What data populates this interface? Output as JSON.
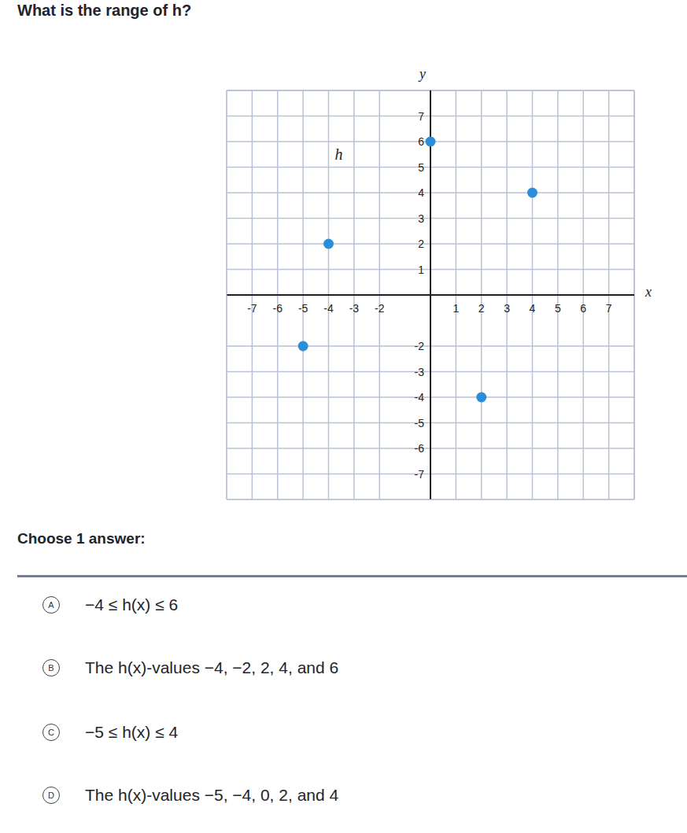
{
  "question": "What is the range of h?",
  "chart_data": {
    "type": "scatter",
    "x": [
      -5,
      -4,
      0,
      2,
      4
    ],
    "values": [
      -2,
      2,
      6,
      -4,
      4
    ],
    "color": "#2a8fd8",
    "xlim": [
      -8,
      8
    ],
    "ylim": [
      -8,
      8
    ],
    "xticks": [
      -7,
      -6,
      -5,
      -4,
      -3,
      -2,
      1,
      2,
      3,
      4,
      5,
      6,
      7
    ],
    "yticks": [
      -7,
      -6,
      -5,
      -4,
      -3,
      -2,
      1,
      2,
      3,
      4,
      5,
      6,
      7
    ],
    "grid": true,
    "x_label": "x",
    "y_label": "y",
    "annotations": [
      {
        "text": "h",
        "x": -3.6,
        "y": 5.5
      }
    ]
  },
  "prompt": "Choose 1 answer:",
  "choices": [
    {
      "letter": "A",
      "text": "−4 ≤ h(x) ≤ 6"
    },
    {
      "letter": "B",
      "text": "The h(x)-values −4, −2, 2, 4, and 6"
    },
    {
      "letter": "C",
      "text": "−5 ≤ h(x) ≤ 4"
    },
    {
      "letter": "D",
      "text": "The h(x)-values −5, −4, 0, 2, and 4"
    }
  ]
}
